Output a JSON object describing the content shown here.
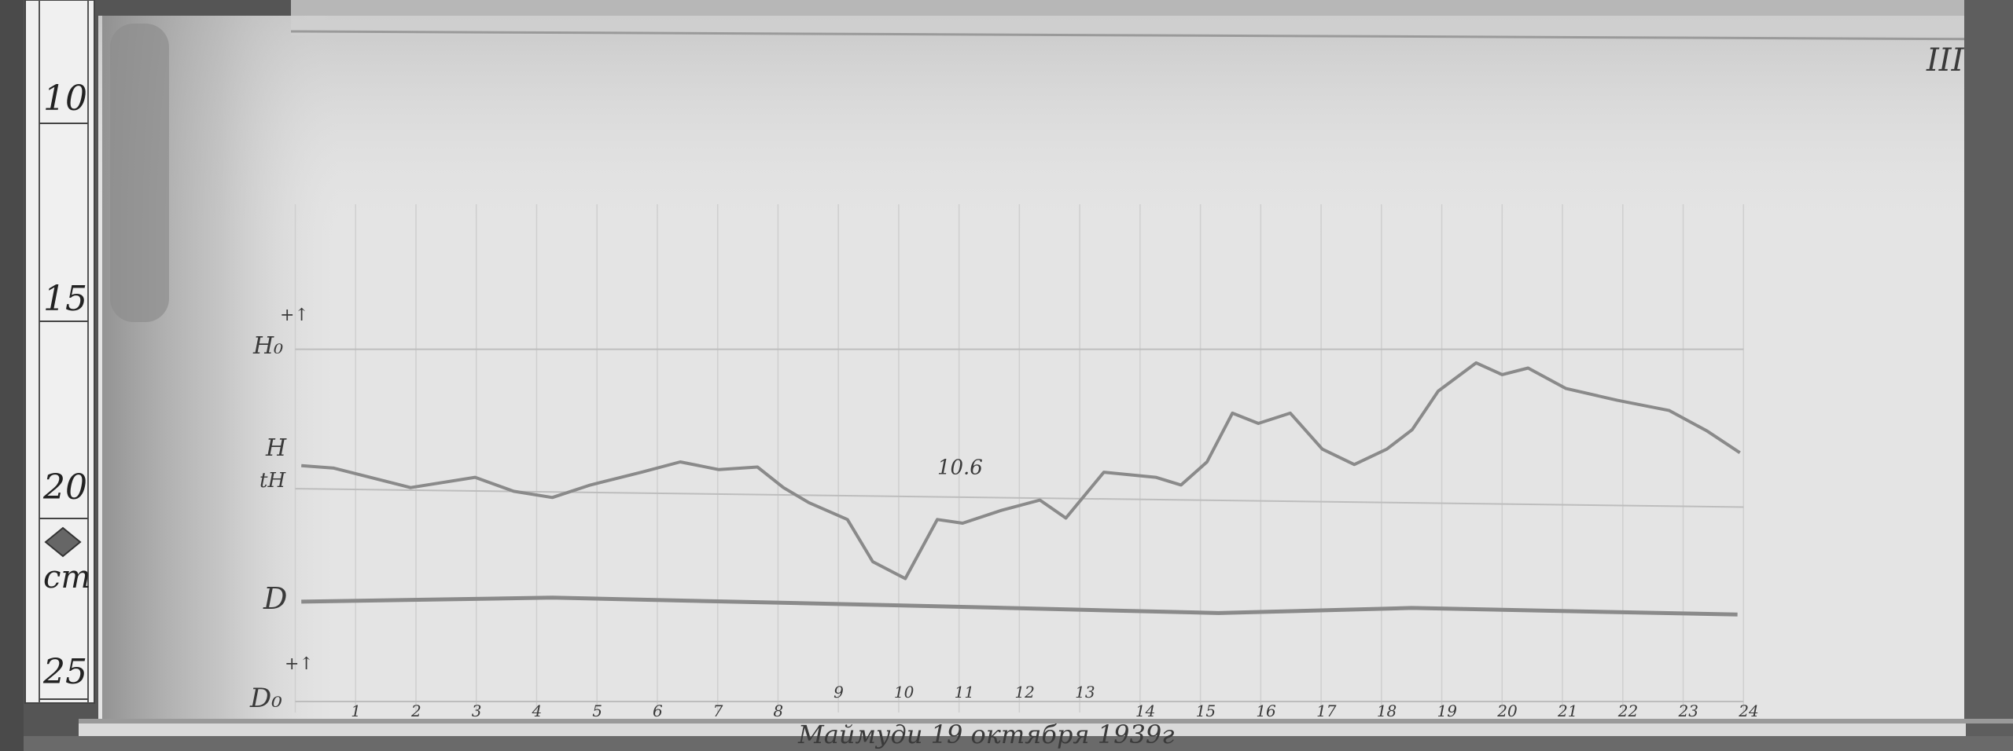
{
  "ruler": {
    "unit": "cm",
    "labels": [
      "10",
      "15",
      "20",
      "25"
    ],
    "unit_label": "cm"
  },
  "corner_mark": "III",
  "chart_data": {
    "type": "line",
    "title": "Маймуди 19 октября 1939г",
    "xlabel": "",
    "ylabel": "",
    "x_unit": "hour",
    "xlim": [
      0,
      24
    ],
    "x_ticks": [
      "1",
      "2",
      "3",
      "4",
      "5",
      "6",
      "7",
      "8",
      "9",
      "10",
      "11",
      "12",
      "13",
      "14",
      "15",
      "16",
      "17",
      "18",
      "19",
      "20",
      "21",
      "22",
      "23",
      "24"
    ],
    "y_unit": "cm (ruler scale)",
    "ylim": [
      10,
      26
    ],
    "grid": true,
    "axis_labels": {
      "H0": "H₀",
      "H0_sign": "+↑",
      "H": "H",
      "tH": "tH",
      "D": "D",
      "D0": "D₀",
      "D0_sign": "+↑"
    },
    "baselines": [
      {
        "name": "H₀",
        "y": [
          16.2,
          16.2
        ]
      },
      {
        "name": "tH",
        "y": [
          20.0,
          20.5
        ]
      },
      {
        "name": "D₀",
        "y": [
          25.8,
          25.8
        ]
      }
    ],
    "annotations": [
      {
        "text": "10.6",
        "x": 10.9,
        "y": 19.6
      }
    ],
    "series": [
      {
        "name": "H",
        "x": [
          0.1,
          0.64,
          1.91,
          2.98,
          3.62,
          4.26,
          4.89,
          5.74,
          6.38,
          7.02,
          7.66,
          8.09,
          8.51,
          9.15,
          9.57,
          10.11,
          10.64,
          11.06,
          11.7,
          12.34,
          12.77,
          13.4,
          14.26,
          14.68,
          15.11,
          15.53,
          15.96,
          16.49,
          17.02,
          17.55,
          18.09,
          18.51,
          18.94,
          19.57,
          20.0,
          20.43,
          21.06,
          21.91,
          22.77,
          23.4,
          23.94
        ],
        "y": [
          19.37,
          19.44,
          19.97,
          19.69,
          20.07,
          20.24,
          19.9,
          19.55,
          19.27,
          19.48,
          19.41,
          19.97,
          20.38,
          20.84,
          21.99,
          22.45,
          20.84,
          20.94,
          20.59,
          20.31,
          20.8,
          19.55,
          19.69,
          19.9,
          19.27,
          17.94,
          18.22,
          17.94,
          18.92,
          19.34,
          18.92,
          18.39,
          17.34,
          16.57,
          16.89,
          16.71,
          17.27,
          17.59,
          17.87,
          18.43,
          19.02
        ]
      },
      {
        "name": "D",
        "x": [
          0.1,
          4.26,
          10.0,
          15.3,
          18.5,
          23.9
        ],
        "y": [
          23.08,
          22.97,
          23.18,
          23.39,
          23.25,
          23.43
        ]
      }
    ],
    "colors": {
      "trace": "#8a8a8a",
      "grid": "#cfcfcf",
      "paper": "#e6e6e6"
    }
  }
}
